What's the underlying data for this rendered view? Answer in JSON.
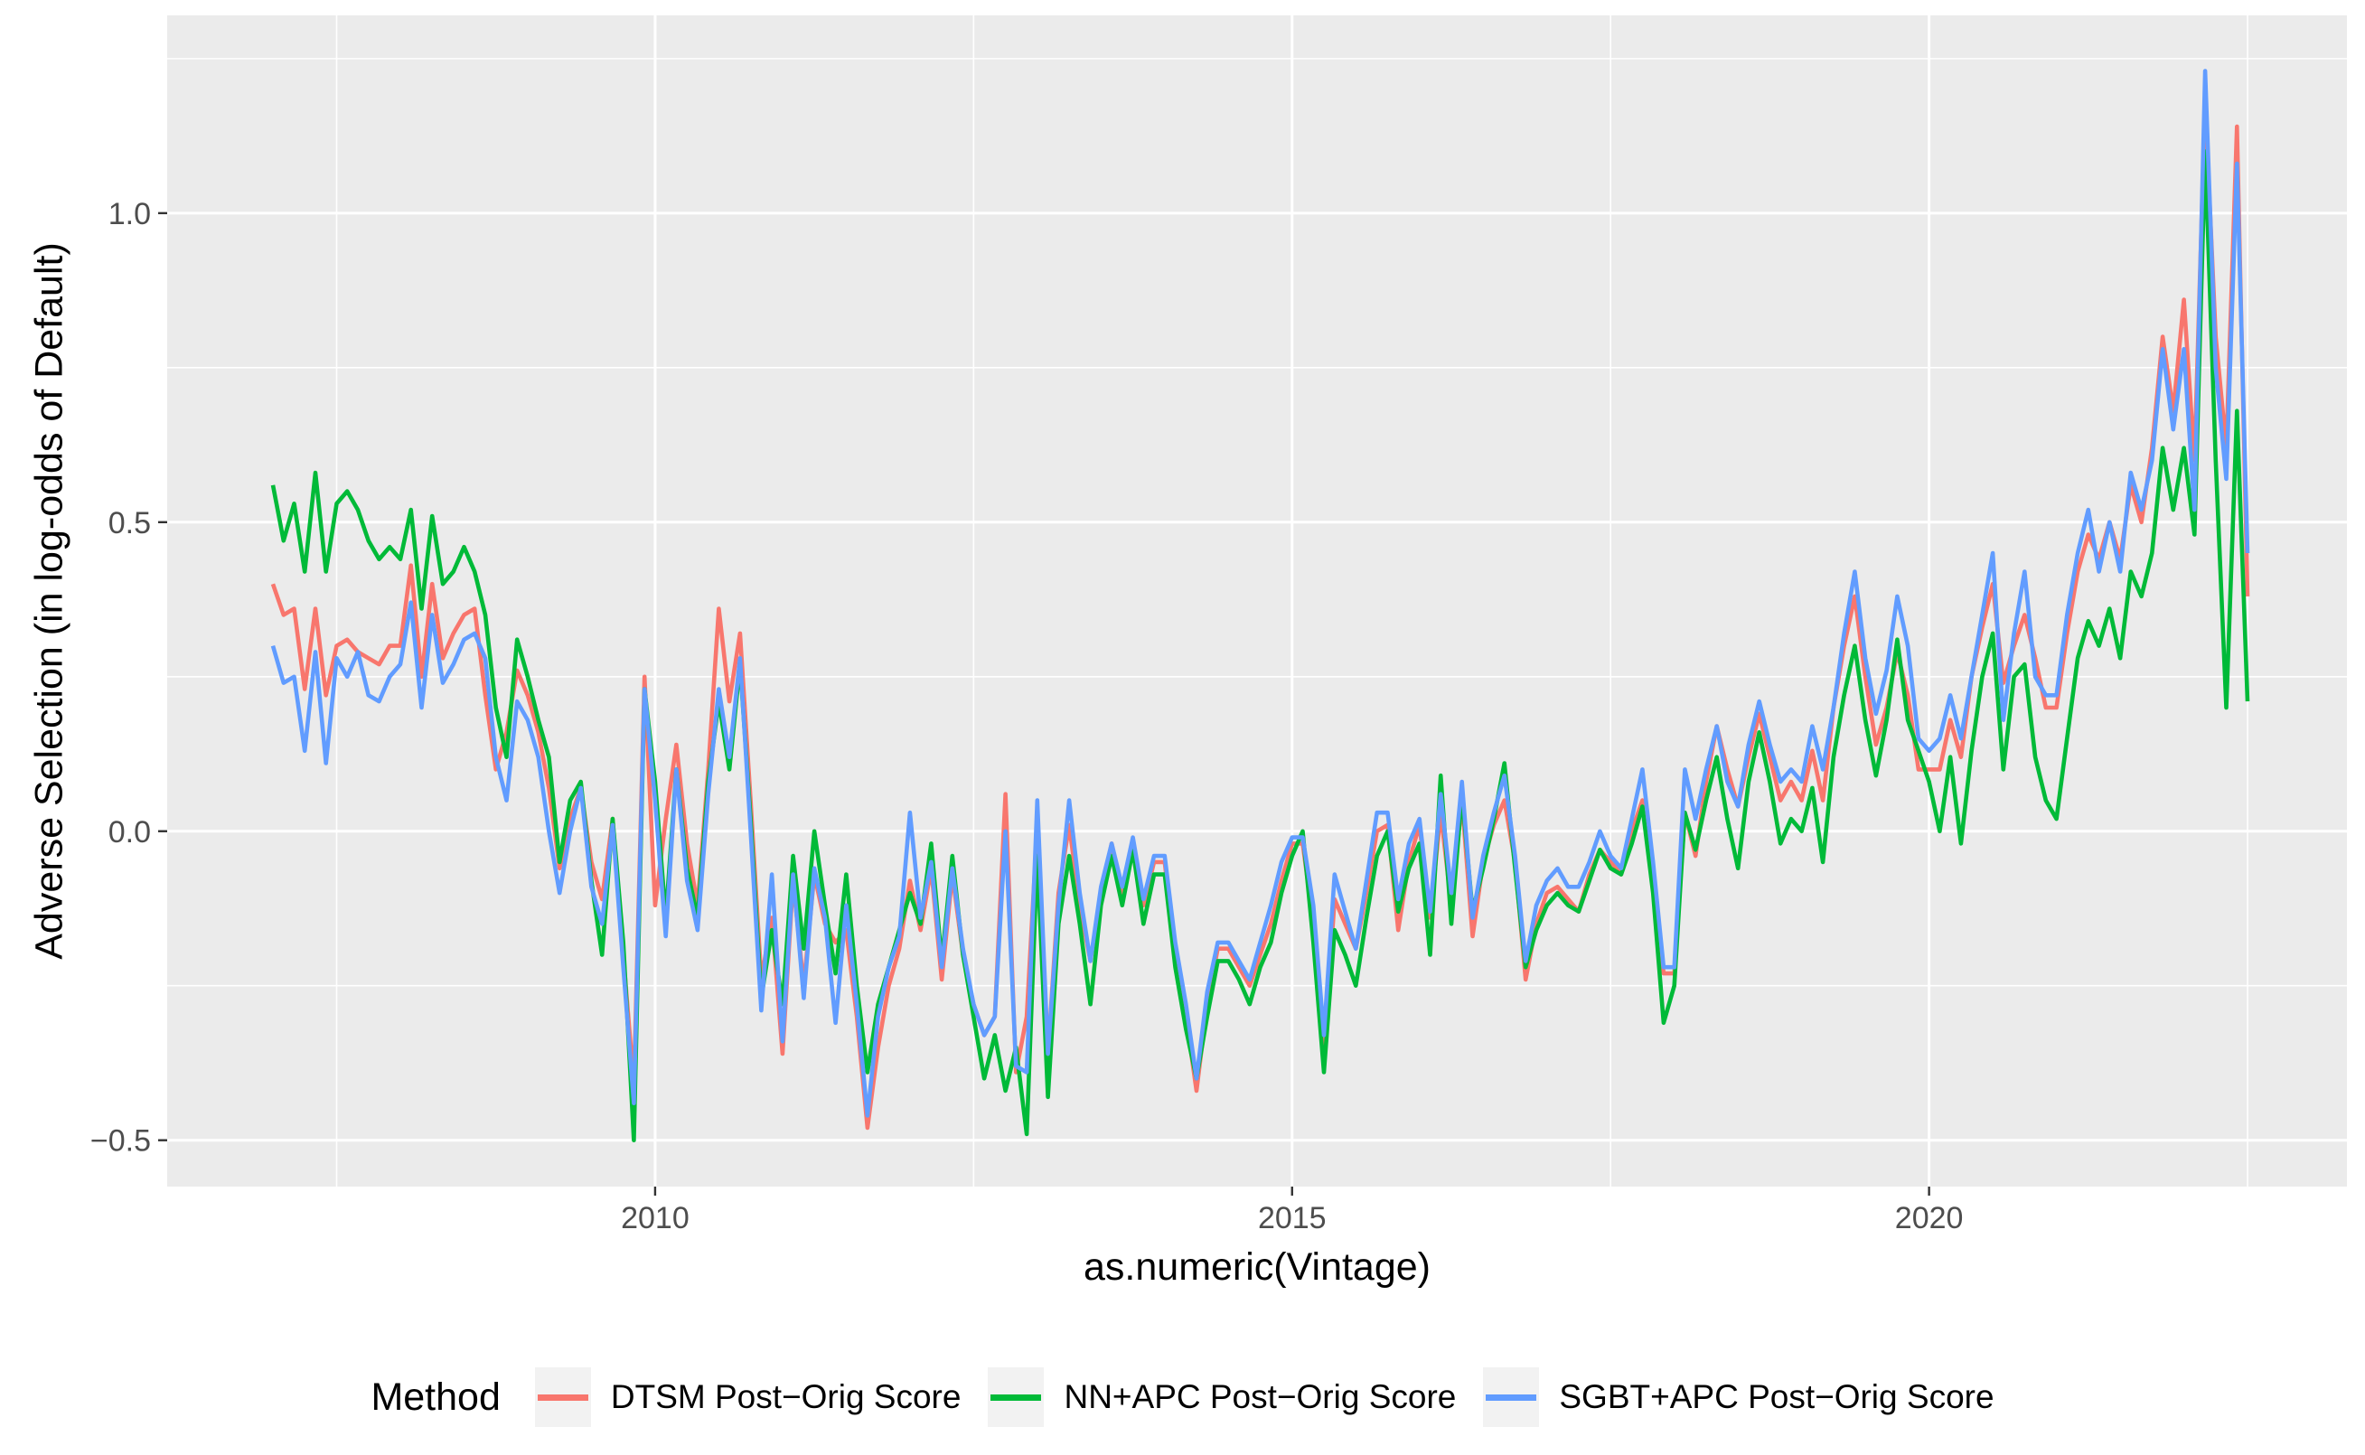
{
  "chart_data": {
    "type": "line",
    "title": "",
    "xlabel": "as.numeric(Vintage)",
    "ylabel": "Adverse Selection (in log-odds of Default)",
    "x_range": [
      2006.17,
      2023.28
    ],
    "y_range": [
      -0.575,
      1.32
    ],
    "grid": true,
    "panel_bg": "#EBEBEB",
    "grid_color": "#FFFFFF",
    "tick_color": "#333333",
    "tick_label_color": "#4D4D4D",
    "x_ticks": [
      {
        "v": 2010,
        "label": "2010"
      },
      {
        "v": 2015,
        "label": "2015"
      },
      {
        "v": 2020,
        "label": "2020"
      }
    ],
    "x_minor": [
      2007.5,
      2012.5,
      2017.5,
      2022.5
    ],
    "y_ticks": [
      {
        "v": 1.0,
        "label": "1.0"
      },
      {
        "v": 0.5,
        "label": "0.5"
      },
      {
        "v": 0.0,
        "label": "0.0"
      },
      {
        "v": -0.5,
        "label": "−0.5"
      }
    ],
    "y_minor": [
      1.25,
      0.75,
      0.25,
      -0.25
    ],
    "legend": {
      "title": "Method",
      "position": "bottom"
    },
    "x_start": 2007.0,
    "x_step": 0.0833333,
    "series": [
      {
        "name": "DTSM Post−Orig Score",
        "color": "#F8766D",
        "values": [
          0.4,
          0.35,
          0.36,
          0.23,
          0.36,
          0.22,
          0.3,
          0.31,
          0.29,
          0.28,
          0.27,
          0.3,
          0.3,
          0.43,
          0.25,
          0.4,
          0.28,
          0.32,
          0.35,
          0.36,
          0.22,
          0.1,
          0.16,
          0.26,
          0.22,
          0.16,
          0.07,
          -0.06,
          0.02,
          0.07,
          -0.05,
          -0.11,
          0.02,
          -0.2,
          -0.41,
          0.25,
          -0.12,
          0.02,
          0.14,
          -0.02,
          -0.12,
          0.1,
          0.36,
          0.21,
          0.32,
          0.05,
          -0.24,
          -0.14,
          -0.36,
          -0.08,
          -0.25,
          -0.07,
          -0.15,
          -0.18,
          -0.16,
          -0.3,
          -0.48,
          -0.35,
          -0.25,
          -0.19,
          -0.08,
          -0.16,
          -0.06,
          -0.24,
          -0.07,
          -0.2,
          -0.28,
          -0.33,
          -0.3,
          0.06,
          -0.39,
          -0.3,
          0.01,
          -0.36,
          -0.1,
          0.01,
          -0.12,
          -0.21,
          -0.1,
          -0.02,
          -0.1,
          -0.02,
          -0.12,
          -0.05,
          -0.05,
          -0.2,
          -0.3,
          -0.42,
          -0.28,
          -0.19,
          -0.19,
          -0.22,
          -0.25,
          -0.2,
          -0.15,
          -0.08,
          -0.02,
          -0.02,
          -0.15,
          -0.36,
          -0.11,
          -0.15,
          -0.19,
          -0.1,
          0.0,
          0.01,
          -0.16,
          -0.05,
          0.01,
          -0.14,
          0.03,
          -0.12,
          0.05,
          -0.17,
          -0.05,
          0.01,
          0.05,
          -0.05,
          -0.24,
          -0.15,
          -0.1,
          -0.09,
          -0.11,
          -0.13,
          -0.07,
          -0.03,
          -0.05,
          -0.07,
          0.0,
          0.05,
          -0.08,
          -0.23,
          -0.23,
          0.03,
          -0.04,
          0.08,
          0.17,
          0.1,
          0.04,
          0.12,
          0.19,
          0.12,
          0.05,
          0.08,
          0.05,
          0.13,
          0.05,
          0.2,
          0.3,
          0.38,
          0.25,
          0.14,
          0.2,
          0.29,
          0.22,
          0.1,
          0.1,
          0.1,
          0.18,
          0.12,
          0.25,
          0.33,
          0.4,
          0.24,
          0.3,
          0.35,
          0.28,
          0.2,
          0.2,
          0.32,
          0.42,
          0.48,
          0.44,
          0.5,
          0.44,
          0.56,
          0.5,
          0.62,
          0.8,
          0.68,
          0.86,
          0.6,
          1.18,
          0.8,
          0.62,
          1.14,
          0.38
        ]
      },
      {
        "name": "NN+APC Post−Orig Score",
        "color": "#00BA38",
        "values": [
          0.56,
          0.47,
          0.53,
          0.42,
          0.58,
          0.42,
          0.53,
          0.55,
          0.52,
          0.47,
          0.44,
          0.46,
          0.44,
          0.52,
          0.36,
          0.51,
          0.4,
          0.42,
          0.46,
          0.42,
          0.35,
          0.2,
          0.12,
          0.31,
          0.25,
          0.18,
          0.12,
          -0.05,
          0.05,
          0.08,
          -0.08,
          -0.2,
          0.02,
          -0.18,
          -0.5,
          0.23,
          0.08,
          -0.14,
          0.1,
          -0.06,
          -0.14,
          0.08,
          0.21,
          0.1,
          0.27,
          0.02,
          -0.27,
          -0.16,
          -0.28,
          -0.04,
          -0.19,
          0.0,
          -0.12,
          -0.23,
          -0.07,
          -0.25,
          -0.39,
          -0.28,
          -0.22,
          -0.16,
          -0.1,
          -0.15,
          -0.02,
          -0.21,
          -0.04,
          -0.2,
          -0.3,
          -0.4,
          -0.33,
          -0.42,
          -0.35,
          -0.49,
          -0.04,
          -0.43,
          -0.15,
          -0.04,
          -0.15,
          -0.28,
          -0.12,
          -0.04,
          -0.12,
          -0.03,
          -0.15,
          -0.07,
          -0.07,
          -0.22,
          -0.32,
          -0.4,
          -0.3,
          -0.21,
          -0.21,
          -0.24,
          -0.28,
          -0.22,
          -0.18,
          -0.1,
          -0.04,
          0.0,
          -0.18,
          -0.39,
          -0.16,
          -0.2,
          -0.25,
          -0.14,
          -0.04,
          0.0,
          -0.13,
          -0.06,
          -0.02,
          -0.2,
          0.09,
          -0.15,
          0.06,
          -0.13,
          -0.06,
          0.02,
          0.11,
          -0.06,
          -0.22,
          -0.16,
          -0.12,
          -0.1,
          -0.12,
          -0.13,
          -0.08,
          -0.03,
          -0.06,
          -0.07,
          -0.02,
          0.04,
          -0.1,
          -0.31,
          -0.25,
          0.03,
          -0.03,
          0.05,
          0.12,
          0.02,
          -0.06,
          0.08,
          0.16,
          0.08,
          -0.02,
          0.02,
          0.0,
          0.07,
          -0.05,
          0.12,
          0.22,
          0.3,
          0.18,
          0.09,
          0.18,
          0.31,
          0.18,
          0.13,
          0.08,
          0.0,
          0.12,
          -0.02,
          0.13,
          0.25,
          0.32,
          0.1,
          0.25,
          0.27,
          0.12,
          0.05,
          0.02,
          0.15,
          0.28,
          0.34,
          0.3,
          0.36,
          0.28,
          0.42,
          0.38,
          0.45,
          0.62,
          0.52,
          0.62,
          0.48,
          1.1,
          0.6,
          0.2,
          0.68,
          0.21
        ]
      },
      {
        "name": "SGBT+APC Post−Orig Score",
        "color": "#619CFF",
        "values": [
          0.3,
          0.24,
          0.25,
          0.13,
          0.29,
          0.11,
          0.28,
          0.25,
          0.29,
          0.22,
          0.21,
          0.25,
          0.27,
          0.37,
          0.2,
          0.35,
          0.24,
          0.27,
          0.31,
          0.32,
          0.28,
          0.12,
          0.05,
          0.21,
          0.18,
          0.12,
          0.0,
          -0.1,
          0.0,
          0.07,
          -0.09,
          -0.15,
          0.01,
          -0.22,
          -0.44,
          0.23,
          0.05,
          -0.17,
          0.1,
          -0.08,
          -0.16,
          0.06,
          0.23,
          0.12,
          0.28,
          0.0,
          -0.29,
          -0.07,
          -0.34,
          -0.07,
          -0.27,
          -0.06,
          -0.14,
          -0.31,
          -0.12,
          -0.28,
          -0.46,
          -0.3,
          -0.22,
          -0.17,
          0.03,
          -0.14,
          -0.05,
          -0.22,
          -0.06,
          -0.19,
          -0.28,
          -0.33,
          -0.3,
          0.0,
          -0.38,
          -0.39,
          0.05,
          -0.36,
          -0.12,
          0.05,
          -0.1,
          -0.21,
          -0.09,
          -0.02,
          -0.09,
          -0.01,
          -0.11,
          -0.04,
          -0.04,
          -0.18,
          -0.28,
          -0.4,
          -0.26,
          -0.18,
          -0.18,
          -0.21,
          -0.24,
          -0.18,
          -0.12,
          -0.05,
          -0.01,
          -0.01,
          -0.12,
          -0.33,
          -0.07,
          -0.13,
          -0.19,
          -0.08,
          0.03,
          0.03,
          -0.11,
          -0.02,
          0.02,
          -0.13,
          0.06,
          -0.1,
          0.08,
          -0.14,
          -0.04,
          0.03,
          0.09,
          -0.04,
          -0.21,
          -0.12,
          -0.08,
          -0.06,
          -0.09,
          -0.09,
          -0.05,
          0.0,
          -0.04,
          -0.06,
          0.02,
          0.1,
          -0.05,
          -0.22,
          -0.22,
          0.1,
          0.02,
          0.1,
          0.17,
          0.08,
          0.04,
          0.14,
          0.21,
          0.14,
          0.08,
          0.1,
          0.08,
          0.17,
          0.1,
          0.2,
          0.32,
          0.42,
          0.28,
          0.19,
          0.26,
          0.38,
          0.3,
          0.15,
          0.13,
          0.15,
          0.22,
          0.15,
          0.25,
          0.35,
          0.45,
          0.18,
          0.32,
          0.42,
          0.25,
          0.22,
          0.22,
          0.35,
          0.45,
          0.52,
          0.42,
          0.5,
          0.42,
          0.58,
          0.52,
          0.6,
          0.78,
          0.65,
          0.78,
          0.52,
          1.23,
          0.75,
          0.57,
          1.08,
          0.45
        ]
      }
    ]
  }
}
